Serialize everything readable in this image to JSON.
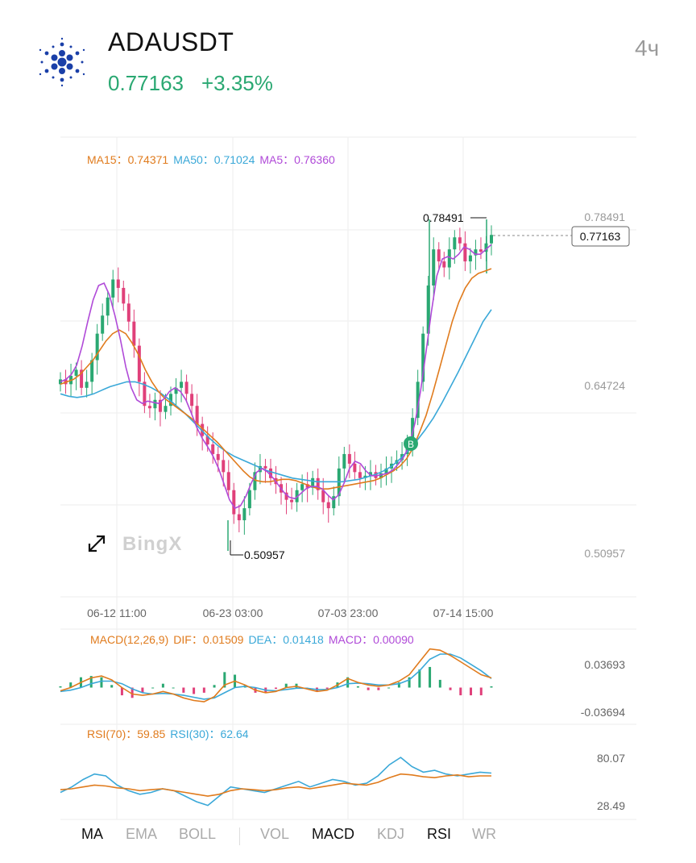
{
  "header": {
    "symbol": "ADAUSDT",
    "price": "0.77163",
    "change": "+3.35%",
    "interval": "4ч"
  },
  "colors": {
    "up": "#2aa872",
    "down": "#e0407a",
    "ma15": "#e07b1d",
    "ma50": "#3aa8d8",
    "ma5": "#b04ad8",
    "grid": "#eeeeee"
  },
  "main_legend": {
    "ma15_label": "MA15：",
    "ma15_value": "0.74371",
    "ma50_label": "MA50：",
    "ma50_value": "0.71024",
    "ma5_label": "MA5：",
    "ma5_value": "0.76360"
  },
  "price_axis": {
    "labels": [
      "0.78491",
      "0.64724",
      "0.50957"
    ],
    "current_price_tag": "0.77163"
  },
  "annotations": {
    "high_label": "0.78491",
    "low_label": "0.50957",
    "buy_marker": "B"
  },
  "watermark": "BingX",
  "time_axis": [
    "06-12 11:00",
    "06-23 03:00",
    "07-03 23:00",
    "07-14 15:00"
  ],
  "macd_legend": {
    "title": "MACD(12,26,9)",
    "dif_label": "DIF：",
    "dif_value": "0.01509",
    "dea_label": "DEA：",
    "dea_value": "0.01418",
    "macd_label": "MACD：",
    "macd_value": "0.00090"
  },
  "macd_axis": [
    "0.03693",
    "-0.03694"
  ],
  "rsi_legend": {
    "rsi70_label": "RSI(70)：",
    "rsi70_value": "59.85",
    "rsi30_label": "RSI(30)：",
    "rsi30_value": "62.64"
  },
  "rsi_axis": [
    "80.07",
    "28.49"
  ],
  "tabs": [
    {
      "label": "MA",
      "active": true
    },
    {
      "label": "EMA",
      "active": false
    },
    {
      "label": "BOLL",
      "active": false
    },
    {
      "label": "VOL",
      "active": false
    },
    {
      "label": "MACD",
      "active": true
    },
    {
      "label": "KDJ",
      "active": false
    },
    {
      "label": "RSI",
      "active": true
    },
    {
      "label": "WR",
      "active": false
    }
  ],
  "chart_data": {
    "type": "candlestick",
    "price_range": [
      0.50957,
      0.78491
    ],
    "price_high": 0.78491,
    "price_low": 0.50957,
    "last_price": 0.77163,
    "close_series": [
      0.652,
      0.648,
      0.655,
      0.66,
      0.645,
      0.65,
      0.668,
      0.69,
      0.705,
      0.72,
      0.735,
      0.728,
      0.715,
      0.7,
      0.68,
      0.65,
      0.63,
      0.628,
      0.635,
      0.625,
      0.63,
      0.64,
      0.645,
      0.65,
      0.64,
      0.63,
      0.615,
      0.605,
      0.598,
      0.59,
      0.585,
      0.575,
      0.56,
      0.54,
      0.535,
      0.545,
      0.56,
      0.575,
      0.58,
      0.578,
      0.57,
      0.565,
      0.558,
      0.552,
      0.55,
      0.56,
      0.565,
      0.562,
      0.57,
      0.56,
      0.55,
      0.545,
      0.555,
      0.578,
      0.59,
      0.582,
      0.575,
      0.57,
      0.572,
      0.575,
      0.57,
      0.574,
      0.578,
      0.582,
      0.585,
      0.59,
      0.6,
      0.62,
      0.65,
      0.69,
      0.73,
      0.76,
      0.75,
      0.745,
      0.76,
      0.77,
      0.765,
      0.75,
      0.755,
      0.76,
      0.758,
      0.765,
      0.772
    ],
    "ma15_series": [
      0.648,
      0.65,
      0.652,
      0.656,
      0.662,
      0.668,
      0.676,
      0.684,
      0.69,
      0.693,
      0.69,
      0.682,
      0.672,
      0.66,
      0.65,
      0.642,
      0.636,
      0.632,
      0.628,
      0.624,
      0.62,
      0.615,
      0.61,
      0.605,
      0.6,
      0.594,
      0.588,
      0.582,
      0.576,
      0.571,
      0.568,
      0.567,
      0.567,
      0.568,
      0.569,
      0.569,
      0.568,
      0.566,
      0.564,
      0.562,
      0.561,
      0.561,
      0.562,
      0.563,
      0.564,
      0.565,
      0.566,
      0.567,
      0.568,
      0.57,
      0.573,
      0.576,
      0.58,
      0.586,
      0.595,
      0.608,
      0.622,
      0.64,
      0.66,
      0.68,
      0.7,
      0.716,
      0.728,
      0.736,
      0.74,
      0.742,
      0.744
    ],
    "ma50_series": [
      0.64,
      0.638,
      0.637,
      0.638,
      0.64,
      0.643,
      0.646,
      0.648,
      0.65,
      0.65,
      0.648,
      0.645,
      0.641,
      0.636,
      0.63,
      0.624,
      0.617,
      0.61,
      0.603,
      0.597,
      0.592,
      0.588,
      0.585,
      0.582,
      0.579,
      0.576,
      0.574,
      0.572,
      0.57,
      0.569,
      0.568,
      0.567,
      0.567,
      0.567,
      0.567,
      0.568,
      0.569,
      0.571,
      0.573,
      0.576,
      0.58,
      0.586,
      0.593,
      0.601,
      0.61,
      0.62,
      0.632,
      0.645,
      0.658,
      0.672,
      0.686,
      0.7,
      0.71
    ],
    "ma5_series": [
      0.65,
      0.652,
      0.656,
      0.664,
      0.68,
      0.7,
      0.718,
      0.73,
      0.732,
      0.722,
      0.705,
      0.685,
      0.662,
      0.645,
      0.635,
      0.632,
      0.634,
      0.633,
      0.632,
      0.636,
      0.642,
      0.645,
      0.642,
      0.635,
      0.624,
      0.612,
      0.603,
      0.596,
      0.588,
      0.578,
      0.565,
      0.552,
      0.545,
      0.547,
      0.555,
      0.566,
      0.575,
      0.578,
      0.575,
      0.57,
      0.564,
      0.558,
      0.554,
      0.553,
      0.557,
      0.561,
      0.563,
      0.563,
      0.561,
      0.556,
      0.552,
      0.556,
      0.566,
      0.578,
      0.584,
      0.582,
      0.576,
      0.572,
      0.572,
      0.573,
      0.574,
      0.577,
      0.582,
      0.588,
      0.598,
      0.616,
      0.642,
      0.674,
      0.708,
      0.738,
      0.752,
      0.754,
      0.752,
      0.756,
      0.762,
      0.76,
      0.756,
      0.756,
      0.76,
      0.764
    ],
    "macd_dif": [
      -0.005,
      0.0,
      0.008,
      0.015,
      0.018,
      0.012,
      0.0,
      -0.01,
      -0.012,
      -0.01,
      -0.006,
      -0.01,
      -0.016,
      -0.02,
      -0.022,
      -0.014,
      0.004,
      0.01,
      0.004,
      -0.004,
      -0.008,
      -0.006,
      0.0,
      0.002,
      -0.002,
      -0.006,
      -0.004,
      0.004,
      0.014,
      0.008,
      0.004,
      0.002,
      0.004,
      0.01,
      0.02,
      0.04,
      0.06,
      0.058,
      0.05,
      0.04,
      0.03,
      0.02,
      0.015
    ],
    "macd_dea": [
      -0.006,
      -0.004,
      0.0,
      0.006,
      0.01,
      0.01,
      0.006,
      -0.002,
      -0.008,
      -0.01,
      -0.009,
      -0.01,
      -0.012,
      -0.015,
      -0.018,
      -0.016,
      -0.008,
      0.0,
      0.002,
      0.0,
      -0.004,
      -0.005,
      -0.003,
      -0.001,
      -0.001,
      -0.003,
      -0.003,
      0.0,
      0.006,
      0.007,
      0.006,
      0.004,
      0.004,
      0.006,
      0.012,
      0.026,
      0.044,
      0.052,
      0.052,
      0.046,
      0.036,
      0.026,
      0.014
    ],
    "rsi70": [
      45,
      46,
      48,
      50,
      49,
      47,
      46,
      44,
      45,
      46,
      44,
      42,
      40,
      38,
      40,
      44,
      46,
      45,
      44,
      45,
      47,
      48,
      46,
      48,
      50,
      52,
      51,
      50,
      53,
      58,
      62,
      61,
      59,
      58,
      60,
      61,
      59,
      60,
      60
    ],
    "rsi30": [
      42,
      48,
      56,
      62,
      60,
      50,
      44,
      40,
      42,
      46,
      44,
      38,
      32,
      28,
      38,
      48,
      46,
      44,
      42,
      46,
      50,
      54,
      48,
      52,
      56,
      54,
      50,
      52,
      60,
      72,
      80,
      70,
      64,
      66,
      62,
      60,
      62,
      64,
      63
    ],
    "macd_axis": [
      0.03693,
      -0.03694
    ],
    "rsi_axis": [
      80.07,
      28.49
    ],
    "time_labels": [
      "06-12 11:00",
      "06-23 03:00",
      "07-03 23:00",
      "07-14 15:00"
    ]
  }
}
